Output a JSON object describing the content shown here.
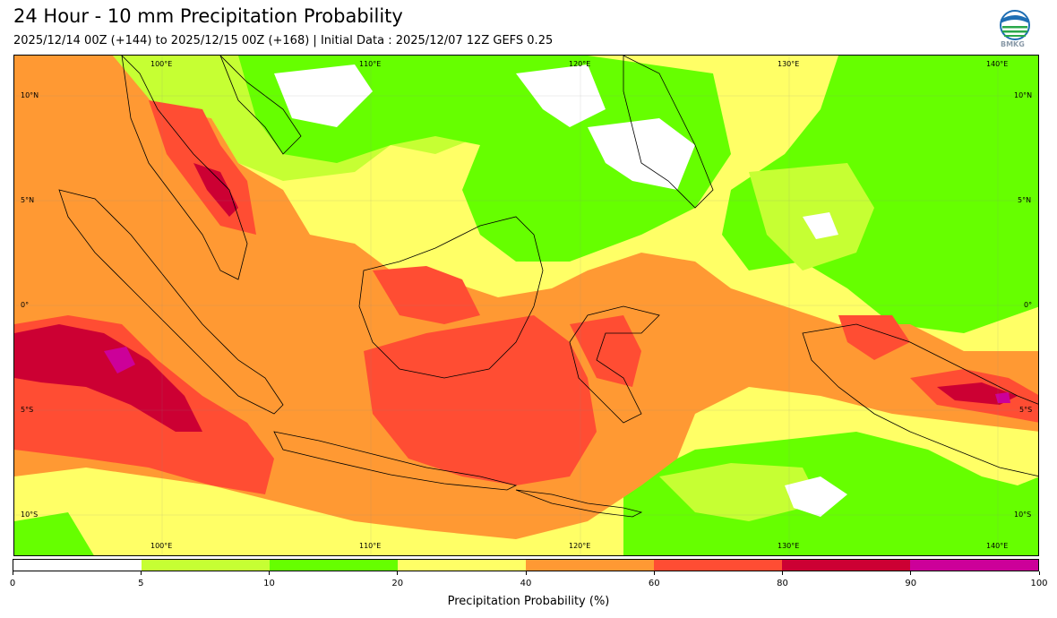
{
  "header": {
    "title": "24 Hour - 10 mm Precipitation Probability",
    "subtitle": "2025/12/14 00Z (+144) to 2025/12/15 00Z (+168) | Initial Data : 2025/12/07 12Z GEFS 0.25",
    "logo_text": "BMKG"
  },
  "map": {
    "lon_labels_top": [
      "100°E",
      "110°E",
      "120°E",
      "130°E",
      "140°E"
    ],
    "lon_labels_bottom": [
      "100°E",
      "110°E",
      "120°E",
      "130°E",
      "140°E"
    ],
    "lat_labels_left": [
      "10°N",
      "5°N",
      "0°",
      "5°S",
      "10°S"
    ],
    "lat_labels_right": [
      "10°N",
      "5°N",
      "0°",
      "5°S",
      "10°S"
    ]
  },
  "colorbar": {
    "bins": [
      {
        "from": 0,
        "to": 5,
        "color": "#ffffff"
      },
      {
        "from": 5,
        "to": 10,
        "color": "#c6ff33"
      },
      {
        "from": 10,
        "to": 20,
        "color": "#66ff00"
      },
      {
        "from": 20,
        "to": 40,
        "color": "#ffff66"
      },
      {
        "from": 40,
        "to": 60,
        "color": "#ff9933"
      },
      {
        "from": 60,
        "to": 80,
        "color": "#ff4d33"
      },
      {
        "from": 80,
        "to": 90,
        "color": "#cc0033"
      },
      {
        "from": 90,
        "to": 100,
        "color": "#cc0099"
      }
    ],
    "ticks": [
      "0",
      "5",
      "10",
      "20",
      "40",
      "60",
      "80",
      "90",
      "100"
    ],
    "label": "Precipitation Probability (%)"
  }
}
